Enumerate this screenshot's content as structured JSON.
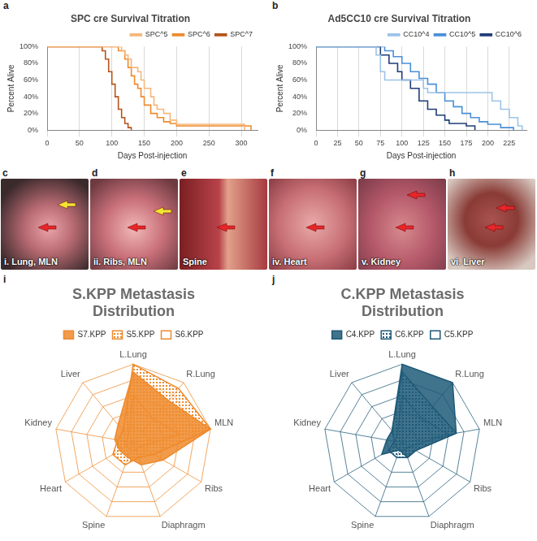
{
  "chart_data": [
    {
      "type": "line",
      "letter": "a",
      "title": "SPC cre Survival Titration",
      "x_label": "Days Post-injection",
      "y_label": "Percent Alive",
      "xlim": [
        0,
        325
      ],
      "xticks": [
        0,
        50,
        100,
        150,
        200,
        250,
        300
      ],
      "ylim": [
        0,
        100
      ],
      "yticks": [
        {
          "value": 0,
          "label": "0%"
        },
        {
          "value": 20,
          "label": "20%"
        },
        {
          "value": 40,
          "label": "40%"
        },
        {
          "value": 60,
          "label": "60%"
        },
        {
          "value": 80,
          "label": "80%"
        },
        {
          "value": 100,
          "label": "100%"
        }
      ],
      "grid": "x",
      "legend": "top-right",
      "series": [
        {
          "name": "SPC^5",
          "color": "#f6b67a",
          "line_style": "steps",
          "x": [
            0,
            115,
            120,
            125,
            130,
            140,
            145,
            150,
            160,
            165,
            170,
            180,
            190,
            200,
            300,
            305
          ],
          "values": [
            100,
            95,
            90,
            85,
            75,
            70,
            60,
            50,
            40,
            30,
            25,
            20,
            12,
            7,
            7,
            0
          ]
        },
        {
          "name": "SPC^6",
          "color": "#ee8a2c",
          "line_style": "steps",
          "x": [
            0,
            110,
            120,
            125,
            130,
            135,
            140,
            145,
            150,
            160,
            170,
            180,
            190,
            200,
            310,
            315
          ],
          "values": [
            100,
            95,
            85,
            75,
            65,
            55,
            50,
            40,
            30,
            20,
            15,
            10,
            8,
            5,
            5,
            0
          ]
        },
        {
          "name": "SPC^7",
          "color": "#b4541b",
          "line_style": "steps",
          "x": [
            0,
            85,
            90,
            95,
            100,
            105,
            110,
            115,
            120,
            125,
            130
          ],
          "values": [
            100,
            95,
            85,
            70,
            55,
            40,
            25,
            15,
            8,
            3,
            0
          ]
        }
      ]
    },
    {
      "type": "line",
      "letter": "b",
      "title": "Ad5CC10 cre Survival Titration",
      "x_label": "Days Post-injection",
      "y_label": "Percent Alive",
      "xlim": [
        0,
        245
      ],
      "xticks": [
        0,
        25,
        50,
        75,
        100,
        125,
        150,
        175,
        200,
        225
      ],
      "ylim": [
        0,
        100
      ],
      "yticks": [
        {
          "value": 0,
          "label": "0%"
        },
        {
          "value": 20,
          "label": "20%"
        },
        {
          "value": 40,
          "label": "40%"
        },
        {
          "value": 60,
          "label": "60%"
        },
        {
          "value": 80,
          "label": "80%"
        },
        {
          "value": 100,
          "label": "100%"
        }
      ],
      "grid": "x",
      "legend": "top-right",
      "series": [
        {
          "name": "CC10^4",
          "color": "#9cc3e8",
          "line_style": "steps",
          "x": [
            0,
            70,
            75,
            80,
            120,
            125,
            130,
            200,
            205,
            215,
            225,
            235,
            240
          ],
          "values": [
            100,
            90,
            70,
            60,
            60,
            50,
            45,
            45,
            35,
            25,
            15,
            5,
            0
          ]
        },
        {
          "name": "CC10^5",
          "color": "#4a8fd8",
          "line_style": "steps",
          "x": [
            0,
            80,
            90,
            100,
            110,
            120,
            130,
            140,
            150,
            160,
            170,
            180,
            190,
            200,
            215,
            230
          ],
          "values": [
            100,
            95,
            88,
            80,
            70,
            62,
            55,
            45,
            35,
            28,
            20,
            15,
            10,
            7,
            3,
            0
          ]
        },
        {
          "name": "CC10^6",
          "color": "#1f3d78",
          "line_style": "steps",
          "x": [
            0,
            75,
            85,
            95,
            100,
            110,
            120,
            130,
            140,
            150,
            155,
            175,
            185
          ],
          "values": [
            100,
            90,
            80,
            70,
            60,
            50,
            35,
            25,
            18,
            12,
            8,
            5,
            0
          ]
        }
      ]
    },
    {
      "type": "radar",
      "letter": "i",
      "title": "S.KPP Metastasis Distribution",
      "categories": [
        "L.Lung",
        "R.Lung",
        "MLN",
        "Ribs",
        "Diaphragm",
        "Spine",
        "Heart",
        "Kidney",
        "Liver"
      ],
      "ylim": [
        0,
        5
      ],
      "yticks": [
        0,
        1,
        2,
        3,
        4,
        5
      ],
      "tick_labels": false,
      "grid": true,
      "legend": "top",
      "series": [
        {
          "name": "S7.KPP",
          "color": "#ee8a2c",
          "type": "area",
          "line_style": "solid",
          "values": [
            4.5,
            3.5,
            5,
            2.2,
            1.5,
            1,
            1,
            1.2,
            1.5
          ]
        },
        {
          "name": "S5.KPP",
          "color": "#ee8a2c",
          "type": "area",
          "line_style": "dotted",
          "values": [
            5,
            4.5,
            5,
            1.5,
            1,
            1.5,
            1.5,
            1,
            1
          ]
        },
        {
          "name": "S6.KPP",
          "color": "#ee8a2c",
          "type": "line",
          "line_style": "solid",
          "values": [
            3,
            2,
            3,
            0.5,
            0.5,
            0.5,
            0.5,
            0.5,
            0.5
          ]
        }
      ]
    },
    {
      "type": "radar",
      "letter": "j",
      "title": "C.KPP Metastasis Distribution",
      "categories": [
        "L.Lung",
        "R.Lung",
        "MLN",
        "Ribs",
        "Diaphragm",
        "Spine",
        "Heart",
        "Kidney",
        "Liver"
      ],
      "ylim": [
        0,
        5
      ],
      "yticks": [
        0,
        1,
        2,
        3,
        4,
        5
      ],
      "tick_labels": false,
      "grid": true,
      "legend": "top",
      "series": [
        {
          "name": "C4.KPP",
          "color": "#1e5a78",
          "type": "area",
          "line_style": "solid",
          "values": [
            5,
            5,
            3.5,
            1,
            1,
            0.5,
            1.5,
            1,
            1
          ]
        },
        {
          "name": "C6.KPP",
          "color": "#1e5a78",
          "type": "area",
          "line_style": "dotted",
          "values": [
            4.5,
            3,
            3.5,
            1,
            1,
            1,
            1,
            0.5,
            1
          ]
        },
        {
          "name": "C5.KPP",
          "color": "#1e5a78",
          "type": "line",
          "line_style": "solid",
          "values": [
            3,
            2,
            3,
            0.5,
            0.5,
            0.5,
            0.5,
            0.5,
            0.5
          ]
        }
      ]
    }
  ],
  "photos": [
    {
      "letter": "c",
      "label": "i. Lung, MLN"
    },
    {
      "letter": "d",
      "label": "ii. Ribs, MLN"
    },
    {
      "letter": "e",
      "label": "Spine"
    },
    {
      "letter": "f",
      "label": "iv. Heart"
    },
    {
      "letter": "g",
      "label": "v. Kidney"
    },
    {
      "letter": "h",
      "label": "vi. Liver"
    }
  ]
}
